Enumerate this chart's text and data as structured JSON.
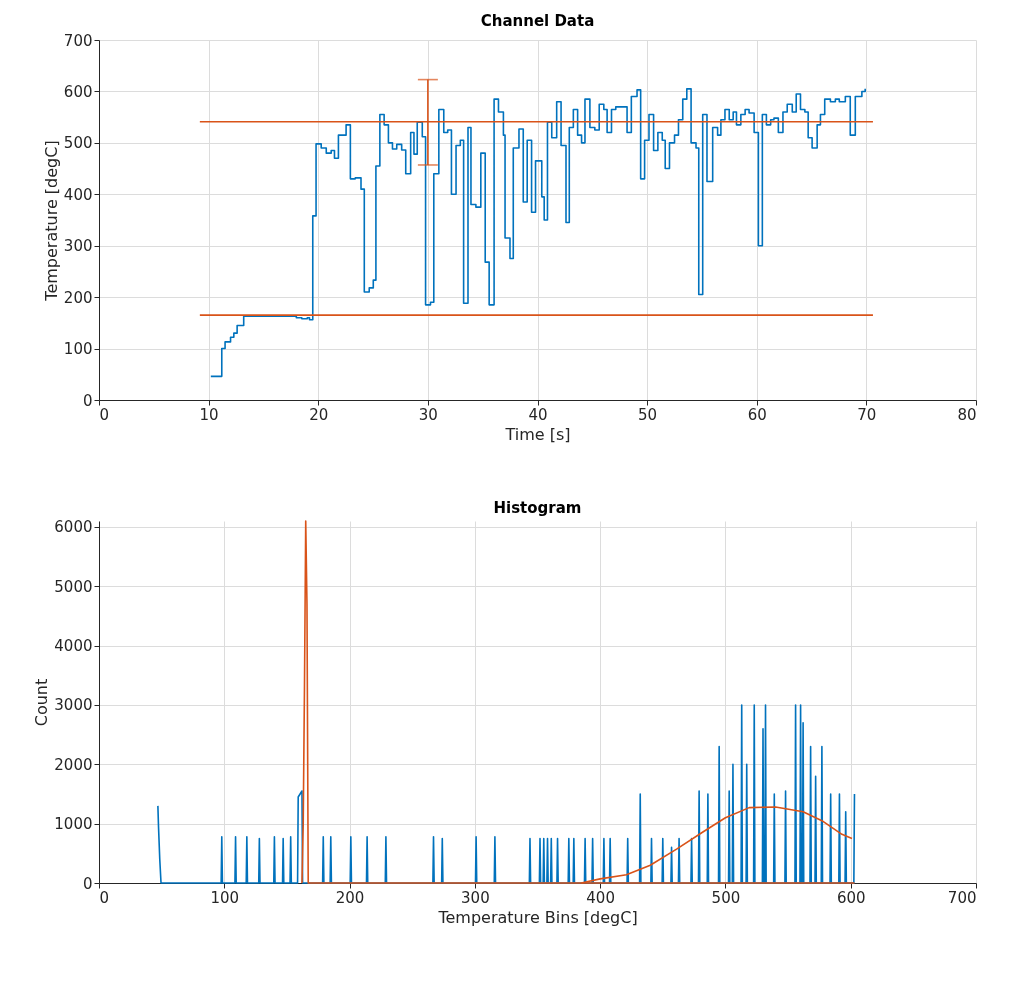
{
  "chart_data": [
    {
      "type": "step",
      "title": "Channel Data",
      "xlabel": "Time [s]",
      "ylabel": "Temperature [degC]",
      "xlim": [
        0,
        80
      ],
      "xticks": [
        0,
        10,
        20,
        30,
        40,
        50,
        60,
        70,
        80
      ],
      "ylim": [
        0,
        700
      ],
      "yticks": [
        0,
        100,
        200,
        300,
        400,
        500,
        600,
        700
      ],
      "grid": true,
      "series": [
        {
          "color": "#0072bd",
          "marker": "none",
          "x": [
            10.2,
            11.2,
            11.5,
            12,
            12.3,
            12.6,
            13.2,
            17,
            18,
            18.5,
            19,
            19.2,
            19.5,
            19.8,
            20.27,
            20.73,
            21.18,
            21.48,
            21.84,
            22.54,
            22.93,
            23.38,
            23.9,
            24.2,
            24.65,
            25.02,
            25.26,
            25.62,
            26.01,
            26.4,
            26.77,
            27.16,
            27.61,
            27.98,
            28.43,
            28.73,
            29.03,
            29.49,
            29.79,
            30.24,
            30.54,
            31,
            31.45,
            31.81,
            32.15,
            32.57,
            32.96,
            33.26,
            33.66,
            33.93,
            34.38,
            34.83,
            35.23,
            35.59,
            36.04,
            36.44,
            36.89,
            37.04,
            37.49,
            37.79,
            38.31,
            38.7,
            39.06,
            39.46,
            39.82,
            40.39,
            40.61,
            40.91,
            41.3,
            41.75,
            42.15,
            42.6,
            42.9,
            43.27,
            43.66,
            44.02,
            44.33,
            44.78,
            45.23,
            45.63,
            46.05,
            46.35,
            46.75,
            47.14,
            48.17,
            48.56,
            49.08,
            49.41,
            49.77,
            50.17,
            50.59,
            50.98,
            51.38,
            51.65,
            52.04,
            52.5,
            52.86,
            53.25,
            53.62,
            54.01,
            54.46,
            54.71,
            55.07,
            55.46,
            55.98,
            56.43,
            56.73,
            57.1,
            57.49,
            57.85,
            58.15,
            58.55,
            58.94,
            59.3,
            59.76,
            60.15,
            60.51,
            60.88,
            61.27,
            61.57,
            61.97,
            62.39,
            62.78,
            63.24,
            63.6,
            63.99,
            64.39,
            64.69,
            65.05,
            65.51,
            65.81,
            66.2,
            66.72,
            67.17,
            67.53,
            68.08,
            68.53,
            68.99,
            69.59,
            69.89
          ],
          "values": [
            46,
            100,
            113,
            122,
            130,
            145,
            163,
            163,
            160,
            158,
            160,
            156,
            358,
            498,
            490,
            480,
            485,
            470,
            515,
            535,
            430,
            432,
            410,
            210,
            218,
            233,
            455,
            555,
            535,
            500,
            488,
            497,
            486,
            440,
            520,
            478,
            540,
            512,
            185,
            190,
            440,
            565,
            520,
            525,
            400,
            495,
            505,
            188,
            530,
            380,
            375,
            480,
            268,
            185,
            585,
            560,
            515,
            315,
            275,
            490,
            527,
            385,
            505,
            365,
            465,
            395,
            350,
            540,
            510,
            580,
            495,
            345,
            530,
            565,
            515,
            500,
            585,
            530,
            525,
            575,
            565,
            520,
            565,
            570,
            520,
            590,
            603,
            430,
            505,
            555,
            485,
            520,
            505,
            450,
            500,
            515,
            545,
            585,
            605,
            500,
            490,
            205,
            555,
            425,
            530,
            515,
            545,
            565,
            545,
            560,
            535,
            555,
            565,
            558,
            520,
            300,
            555,
            535,
            545,
            548,
            520,
            560,
            575,
            560,
            595,
            565,
            560,
            510,
            490,
            535,
            555,
            585,
            580,
            585,
            580,
            590,
            515,
            590,
            600,
            605
          ]
        },
        {
          "type": "line",
          "color": "#d95319",
          "marker": "none",
          "x": [
            9.2,
            30,
            70.6
          ],
          "values": [
            541,
            541,
            541
          ],
          "errors": [
            null,
            [
              457,
              623
            ],
            null
          ]
        },
        {
          "type": "line",
          "color": "#d95319",
          "marker": "none",
          "x": [
            9.2,
            70.6
          ],
          "values": [
            165,
            165
          ]
        }
      ]
    },
    {
      "type": "line",
      "title": "Histogram",
      "xlabel": "Temperature Bins [degC]",
      "ylabel": "Count",
      "xlim": [
        0,
        700
      ],
      "xticks": [
        0,
        100,
        200,
        300,
        400,
        500,
        600,
        700
      ],
      "ylim": [
        0,
        6100
      ],
      "yticks": [
        0,
        1000,
        2000,
        3000,
        4000,
        5000,
        6000
      ],
      "grid": true,
      "series": [
        {
          "color": "#0072bd",
          "marker": "none",
          "x": [
            47,
            47.5,
            48.5,
            49.5,
            97.5,
            98,
            98.5,
            108.5,
            109,
            109.5,
            117.5,
            118,
            118.5,
            127.5,
            128,
            128.5,
            139.5,
            140,
            140.5,
            146.5,
            147,
            147.5,
            152.5,
            153,
            153.5,
            158.5,
            159,
            162,
            162.5,
            178.5,
            179,
            179.5,
            184.5,
            185,
            185.5,
            200.5,
            201,
            201.5,
            213.5,
            214,
            214.5,
            228.5,
            229,
            229.5,
            266.5,
            267,
            267.5,
            273.5,
            274,
            274.5,
            300.5,
            301,
            301.5,
            315.5,
            316,
            316.5,
            343.5,
            344,
            344.5,
            351.5,
            352,
            352.5,
            354.5,
            355,
            355.5,
            357.5,
            358,
            358.5,
            360.5,
            361,
            361.5,
            365.5,
            366,
            366.5,
            374.5,
            375,
            375.5,
            378.5,
            379,
            379.5,
            387.5,
            388,
            388.5,
            393.5,
            394,
            394.5,
            402.5,
            403,
            403.5,
            407.5,
            408,
            408.5,
            421.5,
            422,
            422.5,
            431.5,
            432,
            432.5,
            440.5,
            441,
            441.5,
            449.5,
            450,
            450.5,
            456.5,
            457,
            457.5,
            462.5,
            463,
            463.5,
            472.5,
            473,
            473.5,
            478.5,
            479,
            479.5,
            485.5,
            486,
            486.5,
            494.5,
            495,
            495.5,
            502.5,
            503,
            503.5,
            505.5,
            506,
            506.5,
            512.5,
            513,
            513.5,
            516.5,
            517,
            517.5,
            522.5,
            523,
            523.5,
            529.5,
            530,
            530.5,
            531.5,
            532,
            532.5,
            538.5,
            539,
            539.5,
            547.5,
            548,
            548.5,
            555.5,
            556,
            556.5,
            559.5,
            560,
            560.5,
            561.5,
            562,
            562.5,
            567.5,
            568,
            568.5,
            571.5,
            572,
            572.5,
            576.5,
            577,
            577.5,
            583.5,
            584,
            584.5,
            590.5,
            591,
            591.5,
            595.5,
            596,
            596.5,
            602.5,
            603
          ],
          "values": [
            1300,
            950,
            400,
            0,
            0,
            780,
            0,
            0,
            780,
            0,
            0,
            780,
            0,
            0,
            750,
            0,
            0,
            780,
            0,
            0,
            750,
            0,
            0,
            780,
            0,
            0,
            1450,
            1550,
            0,
            0,
            780,
            0,
            0,
            780,
            0,
            0,
            780,
            0,
            0,
            780,
            0,
            0,
            780,
            0,
            0,
            780,
            0,
            0,
            750,
            0,
            0,
            780,
            0,
            0,
            780,
            0,
            0,
            750,
            0,
            0,
            750,
            0,
            0,
            750,
            0,
            0,
            750,
            0,
            0,
            750,
            0,
            0,
            750,
            0,
            0,
            750,
            0,
            0,
            750,
            0,
            0,
            750,
            0,
            0,
            750,
            0,
            0,
            750,
            0,
            0,
            750,
            0,
            0,
            750,
            0,
            0,
            1500,
            0,
            0,
            750,
            0,
            0,
            750,
            0,
            0,
            600,
            0,
            0,
            750,
            0,
            0,
            750,
            0,
            0,
            1550,
            0,
            0,
            1500,
            0,
            0,
            2300,
            0,
            0,
            1550,
            0,
            0,
            2000,
            0,
            0,
            3000,
            0,
            0,
            2000,
            0,
            0,
            3000,
            0,
            0,
            2600,
            0,
            0,
            3000,
            0,
            0,
            1500,
            0,
            0,
            1550,
            0,
            0,
            3000,
            0,
            0,
            3000,
            0,
            0,
            2700,
            0,
            0,
            2300,
            0,
            0,
            1800,
            0,
            0,
            2300,
            0,
            0,
            1500,
            0,
            0,
            1500,
            0,
            0,
            1200,
            0,
            0,
            1500
          ]
        },
        {
          "color": "#d95319",
          "marker": "none",
          "x": [
            162,
            163,
            164,
            165,
            166,
            167,
            603
          ],
          "values": [
            0,
            1000,
            3300,
            6100,
            4700,
            0,
            0
          ]
        },
        {
          "color": "#d95319",
          "marker": "none",
          "x": [
            385,
            400,
            421,
            440,
            461,
            482,
            500,
            519,
            540,
            562,
            577,
            593,
            601
          ],
          "values": [
            0,
            70,
            140,
            300,
            570,
            860,
            1100,
            1270,
            1280,
            1200,
            1050,
            820,
            750
          ]
        }
      ]
    }
  ]
}
